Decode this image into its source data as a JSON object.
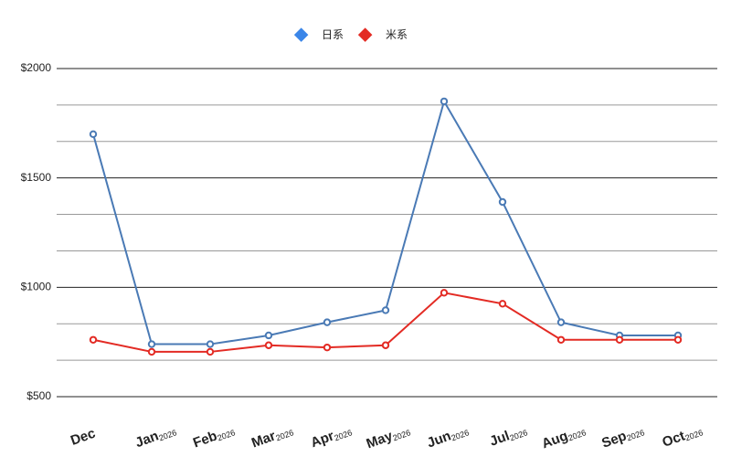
{
  "chart_data": {
    "type": "line",
    "categories": [
      "Dec",
      "Jan",
      "Feb",
      "Mar",
      "Apr",
      "May",
      "Jun",
      "Jul",
      "Aug",
      "Sep",
      "Oct"
    ],
    "category_years": [
      null,
      "2026",
      "2026",
      "2026",
      "2026",
      "2026",
      "2026",
      "2026",
      "2026",
      "2026",
      "2026"
    ],
    "series": [
      {
        "name": "日系",
        "color": "#4a7ab5",
        "legend_color": "#3b86e8",
        "values": [
          1700,
          740,
          740,
          780,
          840,
          895,
          1850,
          1390,
          840,
          780,
          780
        ]
      },
      {
        "name": "米系",
        "color": "#e32b24",
        "legend_color": "#e32b24",
        "values": [
          760,
          705,
          705,
          735,
          725,
          735,
          975,
          925,
          760,
          760,
          760
        ]
      }
    ],
    "ylim": [
      500,
      2000
    ],
    "yticks": [
      {
        "value": 500,
        "label": "$500"
      },
      {
        "value": 1000,
        "label": "$1000"
      },
      {
        "value": 1500,
        "label": "$1500"
      },
      {
        "value": 2000,
        "label": "$2000"
      }
    ],
    "minor_grid_divisions": 3,
    "grid": true
  }
}
